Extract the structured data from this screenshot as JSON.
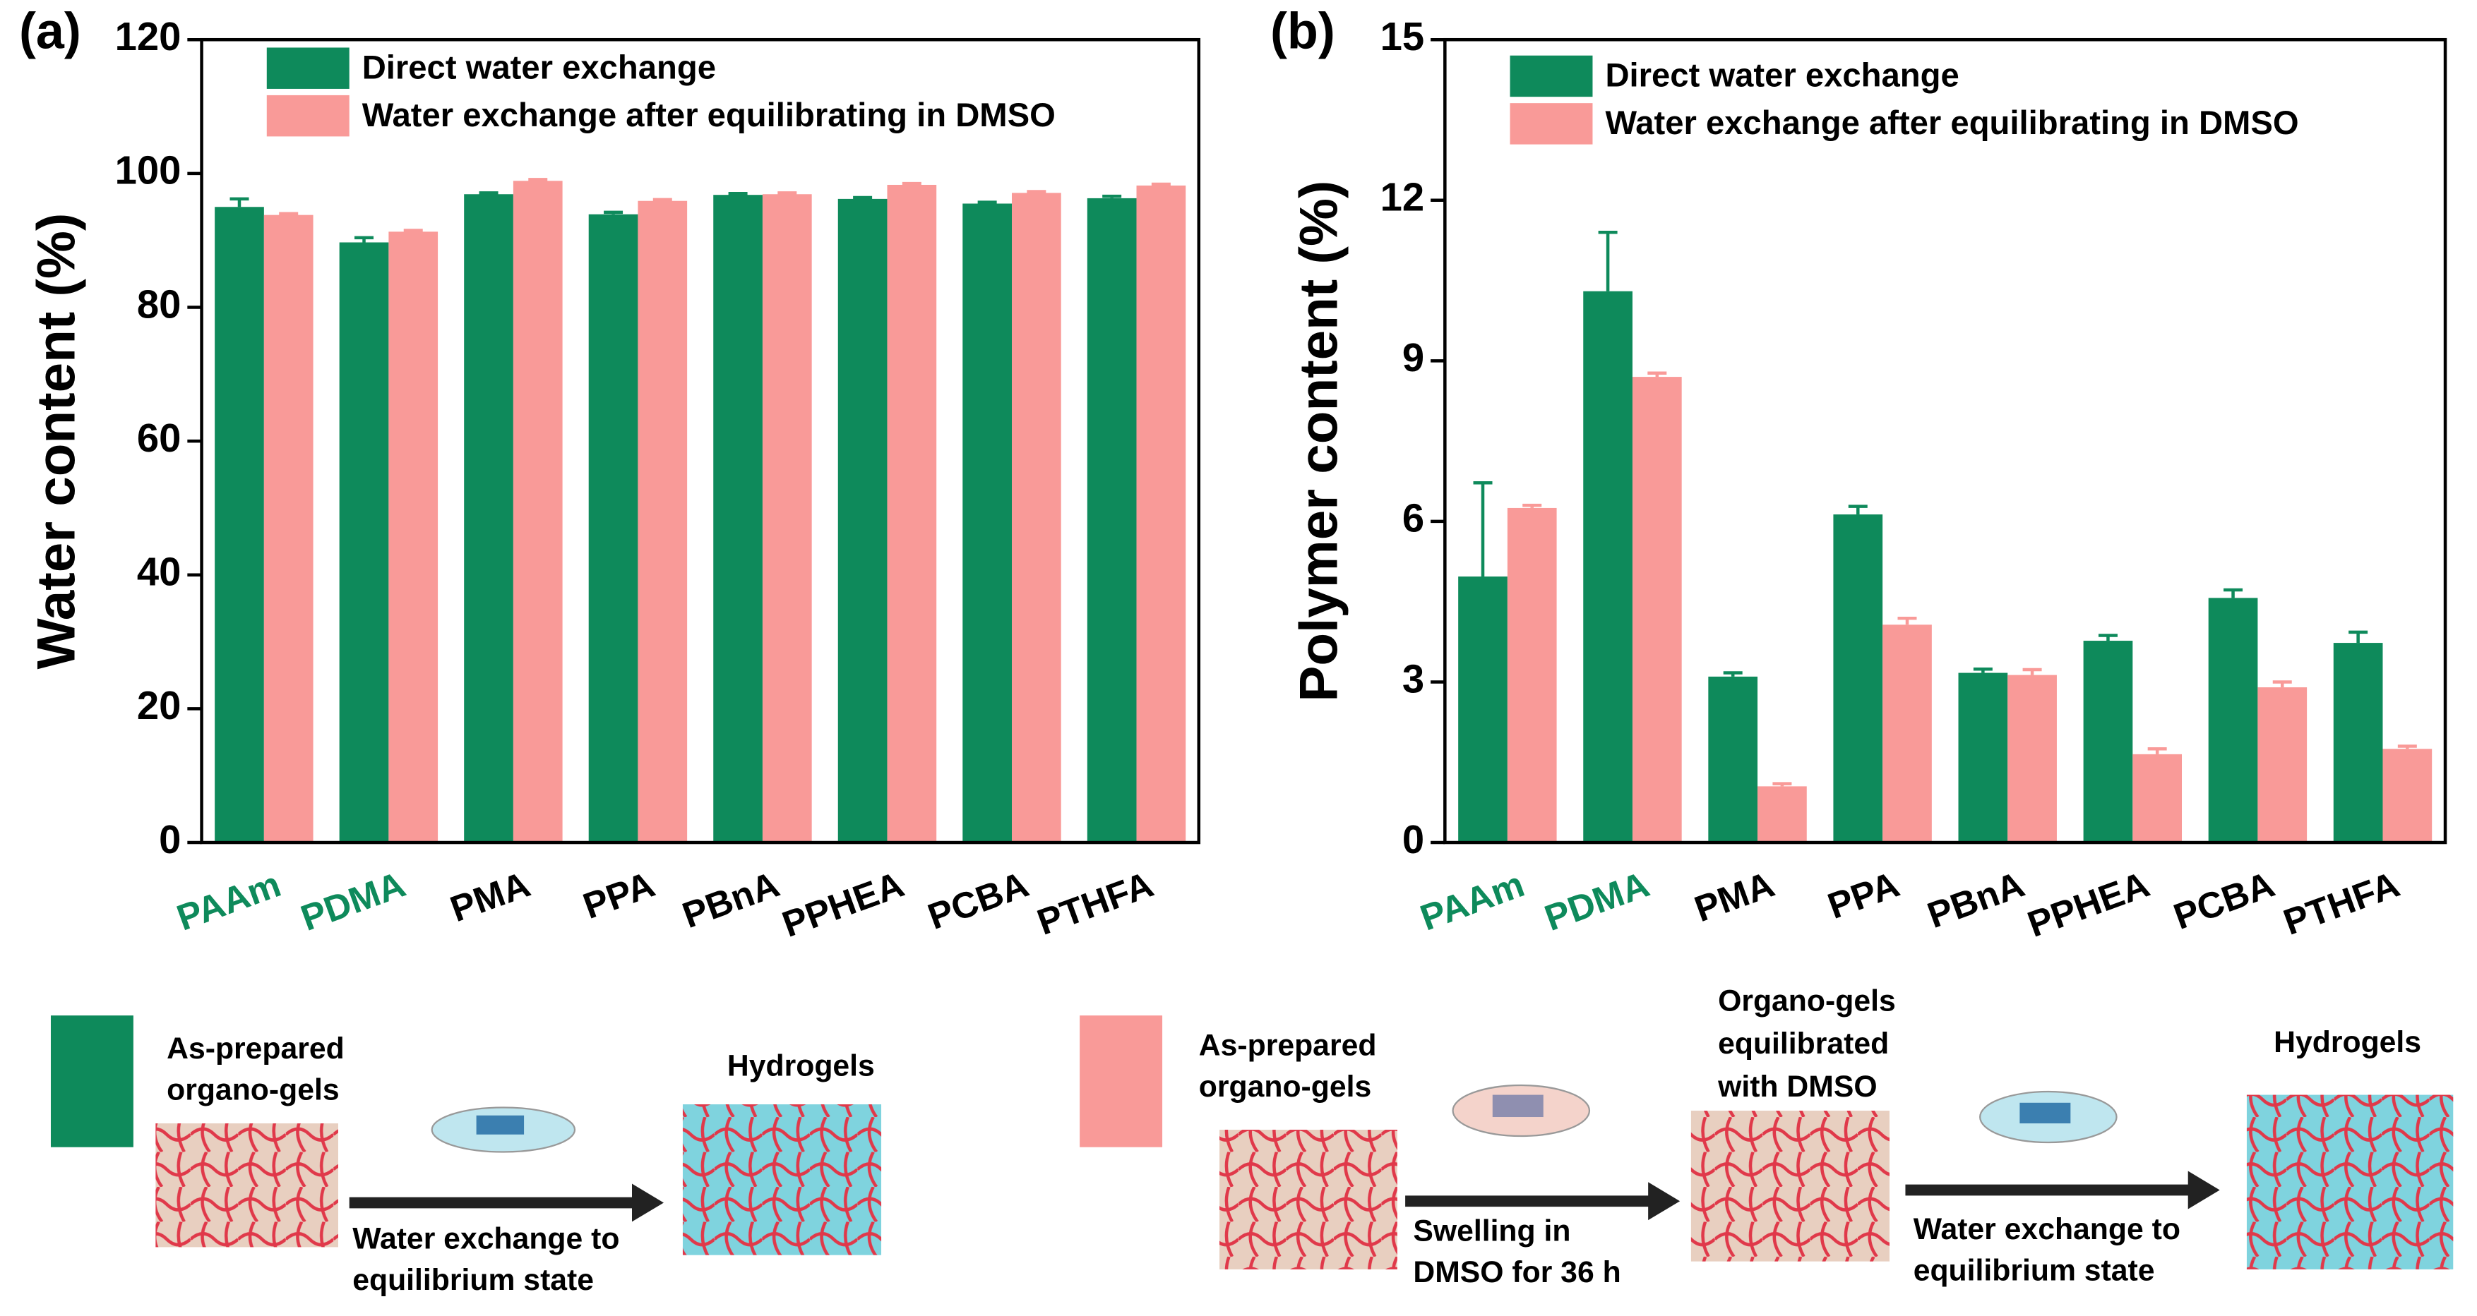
{
  "chart_data": [
    {
      "type": "bar",
      "panel": "(a)",
      "y_label": "Water content (%)",
      "categories": [
        "PAAm",
        "PDMA",
        "PMA",
        "PPA",
        "PBnA",
        "PPHEA",
        "PCBA",
        "PTHFA"
      ],
      "category_label_colors": [
        "#0e8a5b",
        "#0e8a5b",
        "#000000",
        "#000000",
        "#000000",
        "#000000",
        "#000000",
        "#000000"
      ],
      "series": [
        {
          "name": "Direct water exchange",
          "color": "#0e8a5b",
          "values": [
            95.0,
            89.7,
            96.9,
            93.9,
            96.8,
            96.2,
            95.5,
            96.3
          ],
          "errors": [
            1.2,
            0.7,
            0.2,
            0.3,
            0.2,
            0.2,
            0.2,
            0.3
          ]
        },
        {
          "name": "Water exchange after equilibrating in DMSO",
          "color": "#f99a98",
          "values": [
            93.8,
            91.3,
            98.9,
            95.9,
            96.9,
            98.3,
            97.1,
            98.2
          ],
          "errors": [
            0.2,
            0.2,
            0.2,
            0.2,
            0.2,
            0.2,
            0.2,
            0.2
          ]
        }
      ],
      "ylim": [
        0,
        120
      ],
      "yticks": [
        0,
        20,
        40,
        60,
        80,
        100,
        120
      ]
    },
    {
      "type": "bar",
      "panel": "(b)",
      "y_label": "Polymer content (%)",
      "categories": [
        "PAAm",
        "PDMA",
        "PMA",
        "PPA",
        "PBnA",
        "PPHEA",
        "PCBA",
        "PTHFA"
      ],
      "category_label_colors": [
        "#0e8a5b",
        "#0e8a5b",
        "#000000",
        "#000000",
        "#000000",
        "#000000",
        "#000000",
        "#000000"
      ],
      "series": [
        {
          "name": "Direct water exchange",
          "color": "#0e8a5b",
          "values": [
            4.97,
            10.3,
            3.1,
            6.13,
            3.17,
            3.77,
            4.57,
            3.73
          ],
          "errors": [
            1.75,
            1.1,
            0.07,
            0.15,
            0.07,
            0.1,
            0.15,
            0.2
          ]
        },
        {
          "name": "Water exchange after equilibrating in DMSO",
          "color": "#f99a98",
          "values": [
            6.25,
            8.7,
            1.05,
            4.07,
            3.13,
            1.65,
            2.9,
            1.75
          ],
          "errors": [
            0.05,
            0.07,
            0.05,
            0.12,
            0.1,
            0.1,
            0.1,
            0.05
          ]
        }
      ],
      "ylim": [
        0,
        15
      ],
      "yticks": [
        0,
        3,
        6,
        9,
        12,
        15
      ]
    }
  ],
  "schematic": {
    "left": {
      "start": [
        "As-prepared",
        "organo-gels"
      ],
      "end": "Hydrogels",
      "arrow": [
        "Water exchange to",
        "equilibrium state"
      ]
    },
    "right": {
      "start": [
        "As-prepared",
        "organo-gels"
      ],
      "middle": [
        "Organo-gels",
        "equilibrated",
        "with DMSO"
      ],
      "end": "Hydrogels",
      "arrow1": [
        "Swelling in",
        "DMSO  for 36 h"
      ],
      "arrow2": [
        "Water exchange to",
        "equilibrium state"
      ]
    }
  }
}
